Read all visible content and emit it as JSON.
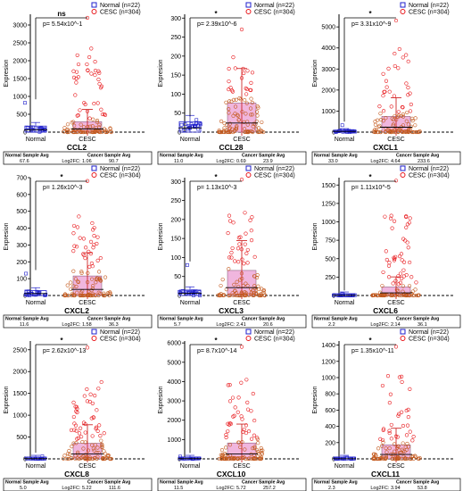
{
  "legend": {
    "normal": "Normal (n=22)",
    "cancer": "CESC (n=304)"
  },
  "ylabel": "Expresion",
  "groups": [
    "Normal",
    "CESC"
  ],
  "footer": {
    "normal_avg_label": "Normal Sample Avg",
    "cancer_avg_label": "Cancer Sample Avg",
    "log2fc_prefix": "Log2FC: "
  },
  "colors": {
    "normal": "#1f1fcc",
    "cancer": "#e8161a",
    "box": "#f0b6de",
    "dots_mid": "#c45a1e"
  },
  "chart_data": [
    {
      "type": "scatter",
      "title": "CCL2",
      "pvalue": "p= 5.54x10^-1",
      "sig": "ns",
      "ylim": [
        0,
        3300
      ],
      "ticks": [
        0,
        500,
        1000,
        1500,
        2000,
        2500,
        3000
      ],
      "normal_avg": "67.6",
      "cancer_avg": "90.7",
      "log2fc": "1.06",
      "normal_max": 820,
      "cancer_max": 3200
    },
    {
      "type": "scatter",
      "title": "CCL28",
      "pvalue": "p= 2.39x10^-6",
      "sig": "*",
      "ylim": [
        0,
        310
      ],
      "ticks": [
        0,
        50,
        100,
        150,
        200,
        250,
        300
      ],
      "normal_avg": "11.0",
      "cancer_avg": "23.9",
      "log2fc": "0.69",
      "normal_max": 32,
      "cancer_max": 270
    },
    {
      "type": "scatter",
      "title": "CXCL1",
      "pvalue": "p= 3.31x10^-9",
      "sig": "*",
      "ylim": [
        0,
        5600
      ],
      "ticks": [
        0,
        1000,
        2000,
        3000,
        4000,
        5000
      ],
      "normal_avg": "33.0",
      "cancer_avg": "233.6",
      "log2fc": "4.64",
      "normal_max": 330,
      "cancer_max": 5300
    },
    {
      "type": "scatter",
      "title": "CXCL2",
      "pvalue": "p= 1.26x10^-3",
      "sig": "*",
      "ylim": [
        0,
        700
      ],
      "ticks": [
        0,
        100,
        200,
        300,
        400,
        500,
        600,
        700
      ],
      "normal_avg": "11.6",
      "cancer_avg": "36.3",
      "log2fc": "1.58",
      "normal_max": 130,
      "cancer_max": 680
    },
    {
      "type": "scatter",
      "title": "CXCL3",
      "pvalue": "p= 1.13x10^-3",
      "sig": "*",
      "ylim": [
        0,
        310
      ],
      "ticks": [
        0,
        50,
        100,
        150,
        200,
        250,
        300
      ],
      "normal_avg": "5.7",
      "cancer_avg": "20.6",
      "log2fc": "2.41",
      "normal_max": 80,
      "cancer_max": 305
    },
    {
      "type": "scatter",
      "title": "CXCL6",
      "pvalue": "p= 1.11x10^-5",
      "sig": "*",
      "ylim": [
        0,
        1600
      ],
      "ticks": [
        0,
        250,
        500,
        750,
        1000,
        1250,
        1500
      ],
      "normal_avg": "2.2",
      "cancer_avg": "36.1",
      "log2fc": "2.14",
      "normal_max": 20,
      "cancer_max": 1560
    },
    {
      "type": "scatter",
      "title": "CXCL8",
      "pvalue": "p= 2.62x10^-13",
      "sig": "*",
      "ylim": [
        0,
        2700
      ],
      "ticks": [
        0,
        500,
        1000,
        1500,
        2000,
        2500
      ],
      "normal_avg": "5.0",
      "cancer_avg": "111.6",
      "log2fc": "5.22",
      "normal_max": 60,
      "cancer_max": 2550
    },
    {
      "type": "scatter",
      "title": "CXCL10",
      "pvalue": "p= 8.7x10^-14",
      "sig": "*",
      "ylim": [
        0,
        6100
      ],
      "ticks": [
        0,
        1000,
        2000,
        3000,
        4000,
        5000,
        6000
      ],
      "normal_avg": "11.5",
      "cancer_avg": "257.2",
      "log2fc": "5.72",
      "normal_max": 120,
      "cancer_max": 5800
    },
    {
      "type": "scatter",
      "title": "CXCL11",
      "pvalue": "p= 1.35x10^-11",
      "sig": "*",
      "ylim": [
        0,
        1450
      ],
      "ticks": [
        0,
        200,
        400,
        600,
        800,
        1000,
        1200,
        1400
      ],
      "normal_avg": "2.3",
      "cancer_avg": "53.8",
      "log2fc": "3.94",
      "normal_max": 15,
      "cancer_max": 1380
    }
  ]
}
